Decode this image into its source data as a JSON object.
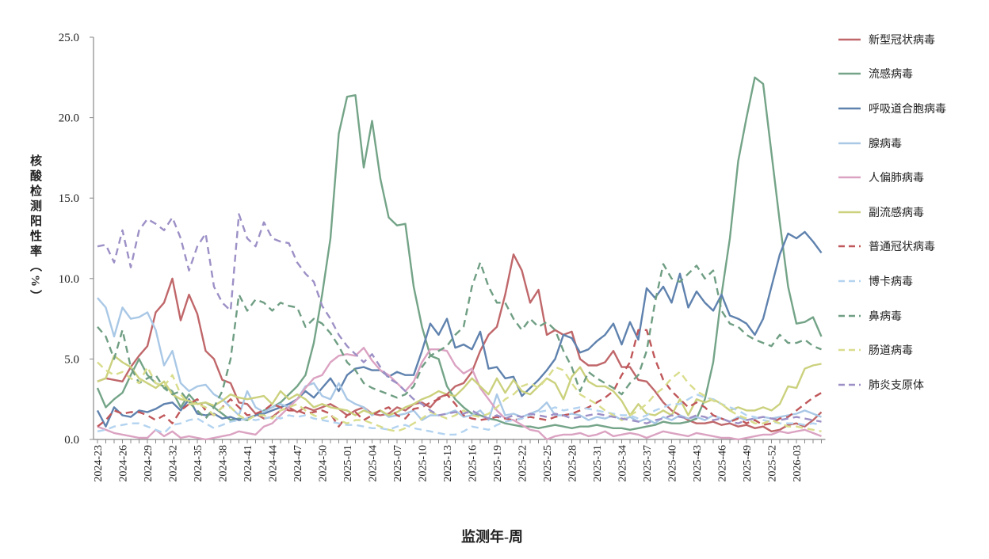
{
  "chart_data": {
    "type": "line",
    "xlabel": "监测年-周",
    "ylabel": "核酸检测阳性率（%）",
    "ylim": [
      0,
      25
    ],
    "y_tick_labels": [
      "0.0",
      "5.0",
      "10.0",
      "15.0",
      "20.0",
      "25.0"
    ],
    "x_tick_labels": [
      "2024-23",
      "2024-26",
      "2024-29",
      "2024-32",
      "2024-35",
      "2024-38",
      "2024-41",
      "2024-44",
      "2024-47",
      "2024-50",
      "2025-01",
      "2025-04",
      "2025-07",
      "2025-10",
      "2025-13",
      "2025-16",
      "2025-19",
      "2025-22",
      "2025-25",
      "2025-28",
      "2025-31",
      "2025-34",
      "2025-37",
      "2025-40",
      "2025-43",
      "2025-46",
      "2025-49",
      "2025-52",
      "2026-03"
    ],
    "legend_position": "right",
    "grid": false,
    "series": [
      {
        "name": "新型冠状病毒",
        "color": "#c0676a",
        "dash": false,
        "values": [
          3.6,
          3.8,
          3.7,
          3.6,
          4.5,
          5.2,
          5.8,
          7.9,
          8.5,
          10.0,
          7.4,
          9.0,
          7.8,
          5.5,
          5.0,
          3.7,
          3.5,
          2.3,
          2.2,
          1.6,
          1.3,
          1.4,
          1.8,
          2.0,
          1.7,
          2.0,
          1.8,
          2.0,
          2.2,
          1.9,
          1.5,
          1.8,
          2.0,
          1.6,
          1.5,
          1.6,
          2.0,
          1.8,
          2.2,
          2.3,
          2.0,
          2.6,
          2.8,
          3.3,
          3.5,
          4.2,
          5.5,
          6.5,
          7.0,
          9.0,
          11.5,
          10.5,
          8.5,
          9.3,
          6.5,
          6.8,
          6.5,
          6.7,
          5.0,
          4.6,
          4.6,
          4.8,
          5.5,
          4.5,
          4.5,
          3.7,
          3.6,
          3.0,
          2.3,
          1.8,
          1.5,
          1.2,
          1.0,
          1.0,
          1.1,
          0.9,
          1.0,
          0.8,
          0.9,
          0.7,
          0.8,
          0.5,
          0.6,
          0.9,
          1.0,
          0.8,
          1.2,
          1.7
        ]
      },
      {
        "name": "流感病毒",
        "color": "#74a488",
        "dash": false,
        "values": [
          3.2,
          2.0,
          2.5,
          2.9,
          4.0,
          5.0,
          4.0,
          3.5,
          3.3,
          3.0,
          2.0,
          2.8,
          2.2,
          2.3,
          2.0,
          1.6,
          1.2,
          1.3,
          1.2,
          1.5,
          1.8,
          2.0,
          2.3,
          2.8,
          3.3,
          4.0,
          6.0,
          9.0,
          12.5,
          19.0,
          21.3,
          21.4,
          16.9,
          19.8,
          16.2,
          13.8,
          13.3,
          13.4,
          9.5,
          7.0,
          5.2,
          5.0,
          3.3,
          2.5,
          2.0,
          1.6,
          1.5,
          1.3,
          1.2,
          1.0,
          0.9,
          0.8,
          0.8,
          0.7,
          0.8,
          0.9,
          0.8,
          0.7,
          0.8,
          0.8,
          0.9,
          0.8,
          0.7,
          0.7,
          0.6,
          0.7,
          0.8,
          0.9,
          1.1,
          1.0,
          1.0,
          1.1,
          1.3,
          2.5,
          4.8,
          9.0,
          12.5,
          17.3,
          20.0,
          22.5,
          22.1,
          17.8,
          13.5,
          9.5,
          7.2,
          7.3,
          7.6,
          6.4
        ]
      },
      {
        "name": "呼吸道合胞病毒",
        "color": "#5f82ae",
        "dash": false,
        "values": [
          1.8,
          0.8,
          2.0,
          1.5,
          1.4,
          1.8,
          1.7,
          1.9,
          2.2,
          2.3,
          1.8,
          2.5,
          1.6,
          1.5,
          1.6,
          1.3,
          1.4,
          1.2,
          1.3,
          1.5,
          1.6,
          1.8,
          2.0,
          2.2,
          2.5,
          3.0,
          2.6,
          3.2,
          3.8,
          3.0,
          4.0,
          4.4,
          4.5,
          4.3,
          4.3,
          3.9,
          4.2,
          4.0,
          4.0,
          5.5,
          7.2,
          6.5,
          7.5,
          5.7,
          5.9,
          5.6,
          6.7,
          4.4,
          4.5,
          3.8,
          3.9,
          2.7,
          3.2,
          3.7,
          4.3,
          5.0,
          6.5,
          6.3,
          5.4,
          5.6,
          6.1,
          6.5,
          7.2,
          5.9,
          7.3,
          6.2,
          9.4,
          8.8,
          9.5,
          8.5,
          10.3,
          8.2,
          9.2,
          8.5,
          8.0,
          9.0,
          7.7,
          7.5,
          7.2,
          6.5,
          7.5,
          9.5,
          11.5,
          12.8,
          12.5,
          12.9,
          12.3,
          11.6
        ]
      },
      {
        "name": "腺病毒",
        "color": "#a9c8e6",
        "dash": false,
        "values": [
          8.8,
          8.2,
          6.4,
          8.2,
          7.5,
          7.6,
          7.9,
          6.8,
          4.6,
          5.5,
          3.5,
          3.0,
          3.3,
          3.4,
          2.8,
          2.5,
          2.0,
          1.5,
          3.0,
          2.0,
          1.7,
          2.0,
          2.2,
          2.0,
          2.5,
          3.3,
          3.5,
          2.7,
          2.5,
          3.5,
          2.5,
          2.2,
          2.0,
          1.5,
          1.8,
          1.4,
          1.5,
          1.6,
          1.8,
          1.2,
          1.5,
          1.5,
          1.6,
          1.8,
          1.4,
          1.5,
          1.8,
          1.2,
          2.8,
          1.5,
          1.6,
          1.4,
          1.6,
          1.8,
          2.3,
          1.5,
          1.5,
          1.6,
          1.5,
          1.2,
          1.4,
          1.3,
          1.5,
          1.2,
          1.4,
          1.1,
          1.3,
          1.0,
          1.4,
          1.2,
          1.5,
          1.3,
          1.4,
          1.2,
          1.5,
          1.3,
          1.1,
          1.4,
          1.2,
          1.3,
          1.4,
          1.3,
          1.4,
          1.5,
          1.6,
          1.8,
          1.6,
          1.4
        ]
      },
      {
        "name": "人偏肺病毒",
        "color": "#dba3c2",
        "dash": false,
        "values": [
          0.8,
          0.6,
          0.4,
          0.3,
          0.2,
          0.1,
          0.1,
          0.6,
          0.2,
          0.5,
          0.1,
          0.2,
          0.1,
          0.0,
          0.1,
          0.2,
          0.3,
          0.5,
          0.4,
          0.3,
          0.8,
          1.0,
          1.5,
          2.0,
          2.5,
          3.2,
          3.8,
          4.0,
          4.8,
          5.2,
          5.3,
          5.2,
          5.7,
          4.9,
          4.3,
          4.0,
          3.5,
          3.0,
          3.6,
          4.8,
          5.6,
          5.6,
          5.5,
          4.6,
          4.1,
          4.4,
          3.2,
          2.5,
          1.8,
          1.3,
          1.2,
          0.9,
          0.6,
          0.5,
          0.0,
          0.2,
          0.3,
          0.3,
          0.4,
          0.2,
          0.3,
          0.5,
          0.2,
          0.3,
          0.4,
          0.3,
          0.1,
          0.3,
          0.5,
          0.4,
          0.3,
          0.2,
          0.4,
          0.3,
          0.2,
          0.1,
          0.1,
          0.0,
          0.1,
          0.2,
          0.3,
          0.3,
          0.5,
          0.4,
          0.5,
          0.6,
          0.4,
          0.2
        ]
      },
      {
        "name": "副流感病毒",
        "color": "#cbd17d",
        "dash": false,
        "values": [
          3.6,
          3.8,
          5.2,
          4.8,
          4.5,
          3.8,
          3.5,
          3.2,
          3.6,
          2.8,
          2.5,
          2.4,
          2.2,
          2.3,
          2.1,
          2.4,
          2.8,
          2.6,
          2.5,
          2.6,
          2.7,
          2.2,
          3.0,
          2.5,
          2.8,
          2.5,
          2.0,
          2.2,
          2.0,
          1.9,
          1.8,
          1.5,
          1.8,
          1.6,
          1.8,
          1.5,
          1.7,
          2.0,
          2.2,
          2.5,
          2.7,
          3.0,
          2.8,
          2.7,
          3.2,
          3.8,
          3.3,
          2.8,
          3.8,
          2.9,
          3.7,
          3.0,
          2.8,
          3.3,
          3.8,
          3.5,
          2.5,
          3.9,
          4.5,
          3.6,
          3.3,
          3.3,
          3.0,
          2.4,
          1.5,
          2.2,
          1.6,
          1.5,
          1.8,
          1.5,
          2.5,
          1.5,
          2.5,
          2.3,
          2.5,
          2.2,
          1.8,
          2.0,
          1.8,
          1.8,
          2.0,
          1.8,
          2.2,
          3.3,
          3.2,
          4.4,
          4.6,
          4.7
        ]
      },
      {
        "name": "普通冠状病毒",
        "color": "#c0575a",
        "dash": true,
        "values": [
          0.8,
          1.2,
          1.8,
          1.6,
          1.7,
          1.7,
          1.5,
          1.2,
          1.5,
          1.0,
          1.8,
          2.2,
          2.5,
          1.8,
          1.5,
          2.0,
          2.5,
          2.0,
          1.5,
          1.6,
          1.8,
          2.2,
          2.0,
          1.8,
          1.8,
          1.6,
          1.7,
          1.8,
          1.6,
          0.8,
          1.5,
          1.7,
          1.2,
          1.5,
          1.8,
          2.0,
          1.5,
          1.3,
          1.9,
          2.0,
          2.3,
          2.5,
          2.8,
          2.2,
          1.5,
          1.3,
          1.2,
          1.3,
          1.4,
          1.3,
          1.2,
          1.3,
          1.4,
          1.3,
          1.2,
          1.4,
          1.5,
          1.6,
          1.8,
          2.0,
          2.3,
          2.6,
          3.0,
          4.0,
          4.8,
          6.8,
          6.8,
          5.0,
          3.7,
          3.0,
          2.5,
          2.0,
          2.3,
          2.0,
          1.5,
          1.3,
          1.1,
          1.3,
          1.0,
          1.2,
          0.9,
          1.0,
          1.3,
          1.4,
          1.8,
          2.2,
          2.6,
          2.9
        ]
      },
      {
        "name": "博卡病毒",
        "color": "#b3d3f0",
        "dash": true,
        "values": [
          0.5,
          0.6,
          0.8,
          0.9,
          1.0,
          1.0,
          0.8,
          0.6,
          0.4,
          0.9,
          1.0,
          1.2,
          1.3,
          1.0,
          0.7,
          0.9,
          1.1,
          1.2,
          1.3,
          1.2,
          1.3,
          1.4,
          1.3,
          1.5,
          1.4,
          1.5,
          1.3,
          1.2,
          1.1,
          1.0,
          0.9,
          0.9,
          0.8,
          0.7,
          0.7,
          0.6,
          0.8,
          0.9,
          0.7,
          0.6,
          0.5,
          0.4,
          0.3,
          0.3,
          0.5,
          0.8,
          0.7,
          0.6,
          0.9,
          1.1,
          1.2,
          1.3,
          1.5,
          1.7,
          1.8,
          2.0,
          1.8,
          1.9,
          2.0,
          1.9,
          1.8,
          1.7,
          1.6,
          1.5,
          1.5,
          1.3,
          1.5,
          1.8,
          2.0,
          2.2,
          2.2,
          2.5,
          2.8,
          2.6,
          2.5,
          2.2,
          2.0,
          1.8,
          1.5,
          1.4,
          1.2,
          1.1,
          1.0,
          1.0,
          1.0,
          0.9,
          1.0,
          0.9
        ]
      },
      {
        "name": "鼻病毒",
        "color": "#6f9e83",
        "dash": true,
        "values": [
          7.0,
          6.4,
          5.0,
          6.8,
          4.5,
          3.5,
          3.8,
          4.0,
          3.2,
          2.8,
          3.0,
          2.3,
          1.8,
          1.3,
          2.0,
          3.0,
          5.0,
          9.0,
          8.0,
          8.7,
          8.5,
          8.0,
          8.5,
          8.3,
          8.2,
          7.0,
          7.5,
          7.2,
          6.6,
          5.8,
          4.8,
          4.3,
          3.5,
          3.2,
          3.0,
          2.8,
          2.6,
          2.8,
          3.3,
          4.5,
          5.2,
          5.5,
          5.8,
          6.5,
          7.0,
          9.5,
          11.0,
          9.5,
          8.5,
          8.5,
          7.5,
          6.8,
          7.5,
          7.0,
          7.3,
          6.8,
          5.5,
          4.5,
          3.0,
          4.2,
          3.8,
          3.5,
          3.2,
          2.8,
          3.5,
          4.0,
          5.5,
          8.5,
          10.9,
          10.0,
          9.8,
          10.3,
          10.8,
          10.0,
          10.5,
          8.0,
          7.2,
          7.0,
          6.5,
          6.2,
          6.0,
          5.8,
          6.5,
          6.0,
          6.0,
          6.2,
          5.8,
          5.6
        ]
      },
      {
        "name": "肠道病毒",
        "color": "#d9dd8c",
        "dash": true,
        "values": [
          4.8,
          4.3,
          4.0,
          4.2,
          3.8,
          3.5,
          4.5,
          3.5,
          3.3,
          4.0,
          2.8,
          2.2,
          2.2,
          2.0,
          1.5,
          2.0,
          2.0,
          1.5,
          1.2,
          1.5,
          1.5,
          1.3,
          1.8,
          2.0,
          2.2,
          1.8,
          1.5,
          1.3,
          1.5,
          1.2,
          1.0,
          1.2,
          1.2,
          1.0,
          0.8,
          0.6,
          0.5,
          0.7,
          1.0,
          1.3,
          1.7,
          1.5,
          1.3,
          1.5,
          1.8,
          1.5,
          1.4,
          1.6,
          2.0,
          2.5,
          2.8,
          3.3,
          3.5,
          3.2,
          3.8,
          4.5,
          4.3,
          3.5,
          2.8,
          2.5,
          2.2,
          1.8,
          1.5,
          1.2,
          1.5,
          1.8,
          2.2,
          2.8,
          3.2,
          3.8,
          4.2,
          3.5,
          3.0,
          2.7,
          2.4,
          2.2,
          1.8,
          1.5,
          1.3,
          1.0,
          1.0,
          1.2,
          1.0,
          0.8,
          0.8,
          0.7,
          0.6,
          0.5
        ]
      },
      {
        "name": "肺炎支原体",
        "color": "#9d90c6",
        "dash": true,
        "values": [
          12.0,
          12.1,
          11.0,
          13.0,
          10.7,
          13.0,
          13.7,
          13.4,
          13.0,
          13.8,
          12.5,
          10.5,
          12.0,
          12.8,
          9.5,
          8.5,
          8.0,
          14.0,
          12.5,
          12.0,
          13.5,
          12.5,
          12.3,
          12.2,
          11.0,
          10.3,
          9.8,
          8.3,
          7.5,
          6.5,
          5.8,
          5.3,
          4.8,
          5.3,
          4.5,
          3.8,
          3.5,
          3.0,
          2.5,
          2.2,
          1.8,
          1.5,
          1.6,
          1.7,
          1.6,
          1.8,
          1.5,
          1.3,
          1.5,
          1.3,
          1.5,
          1.4,
          1.6,
          1.5,
          1.4,
          1.6,
          1.5,
          1.3,
          1.4,
          1.5,
          1.6,
          1.5,
          1.4,
          1.3,
          1.2,
          1.1,
          1.0,
          1.2,
          1.3,
          1.5,
          1.4,
          1.3,
          1.5,
          1.4,
          1.2,
          1.3,
          1.1,
          1.0,
          1.2,
          1.3,
          1.4,
          1.3,
          1.2,
          1.3,
          1.4,
          1.3,
          1.2,
          1.1
        ]
      }
    ]
  }
}
